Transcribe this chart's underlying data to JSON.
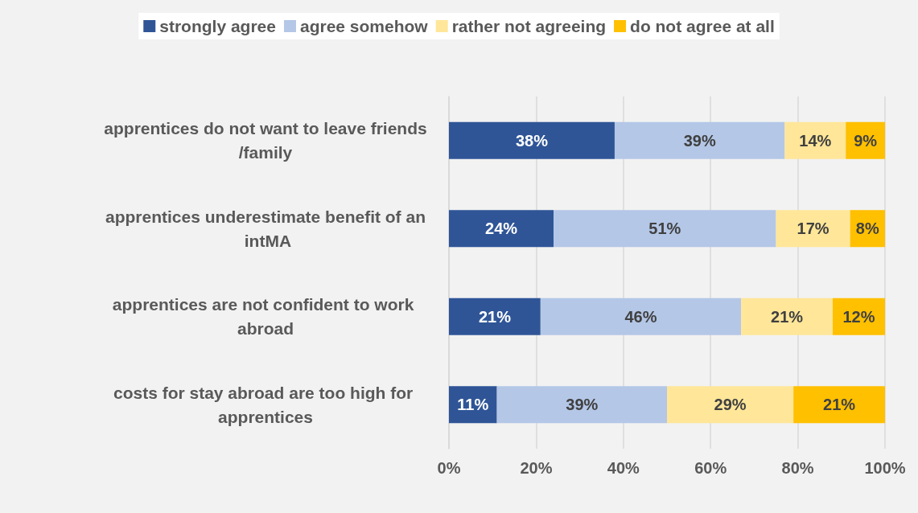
{
  "chart_data": {
    "type": "bar",
    "orientation": "horizontal",
    "stacked": true,
    "categories": [
      "apprentices do not want to leave friends/family",
      "apprentices underestimate benefit of an intMA",
      "apprentices are not confident to work abroad",
      "costs for stay abroad are too high for apprentices"
    ],
    "series": [
      {
        "name": "strongly agree",
        "color": "#2f5597",
        "values": [
          38,
          24,
          21,
          11
        ],
        "value_labels": [
          "38%",
          "24%",
          "21%",
          "11%"
        ]
      },
      {
        "name": "agree somehow",
        "color": "#b4c7e7",
        "values": [
          39,
          51,
          46,
          39
        ],
        "value_labels": [
          "39%",
          "51%",
          "46%",
          "39%"
        ]
      },
      {
        "name": "rather not agreeing",
        "color": "#ffe699",
        "values": [
          14,
          17,
          21,
          29
        ],
        "value_labels": [
          "14%",
          "17%",
          "21%",
          "29%"
        ]
      },
      {
        "name": "do not agree at all",
        "color": "#ffc000",
        "values": [
          9,
          8,
          12,
          21
        ],
        "value_labels": [
          "9%",
          "8%",
          "12%",
          "21%"
        ]
      }
    ],
    "xlim": [
      0,
      100
    ],
    "xticks": [
      {
        "value": 0,
        "label": "0%"
      },
      {
        "value": 20,
        "label": "20%"
      },
      {
        "value": 40,
        "label": "40%"
      },
      {
        "value": 60,
        "label": "60%"
      },
      {
        "value": 80,
        "label": "80%"
      },
      {
        "value": 100,
        "label": "100%"
      }
    ],
    "grid": "x",
    "legend": "top"
  }
}
